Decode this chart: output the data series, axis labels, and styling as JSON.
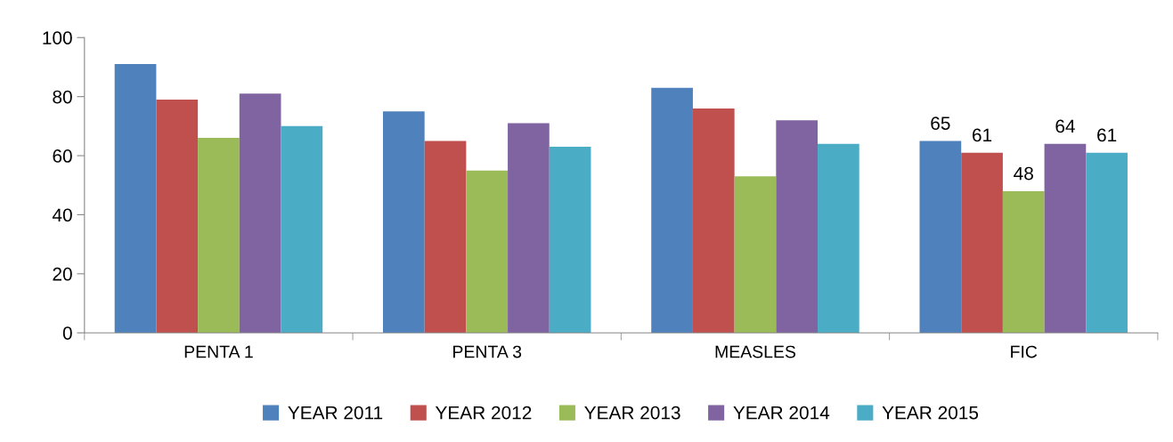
{
  "chart_data": {
    "type": "bar",
    "categories": [
      "PENTA 1",
      "PENTA 3",
      "MEASLES",
      "FIC"
    ],
    "series": [
      {
        "name": "YEAR 2011",
        "color": "#4f81bd",
        "values": [
          91,
          75,
          83,
          65
        ],
        "value_labels": [
          null,
          null,
          null,
          "65"
        ]
      },
      {
        "name": "YEAR 2012",
        "color": "#c0504d",
        "values": [
          79,
          65,
          76,
          61
        ],
        "value_labels": [
          null,
          null,
          null,
          "61"
        ]
      },
      {
        "name": "YEAR 2013",
        "color": "#9bbb59",
        "values": [
          66,
          55,
          53,
          48
        ],
        "value_labels": [
          null,
          null,
          null,
          "48"
        ]
      },
      {
        "name": "YEAR 2014",
        "color": "#8064a2",
        "values": [
          81,
          71,
          72,
          64
        ],
        "value_labels": [
          null,
          null,
          null,
          "64"
        ]
      },
      {
        "name": "YEAR 2015",
        "color": "#4bacc6",
        "values": [
          70,
          63,
          64,
          61
        ],
        "value_labels": [
          null,
          null,
          null,
          "61"
        ]
      }
    ],
    "ylim": [
      0,
      100
    ],
    "yticks": [
      0,
      20,
      40,
      60,
      80,
      100
    ],
    "grid": false,
    "legend": "bottom"
  }
}
